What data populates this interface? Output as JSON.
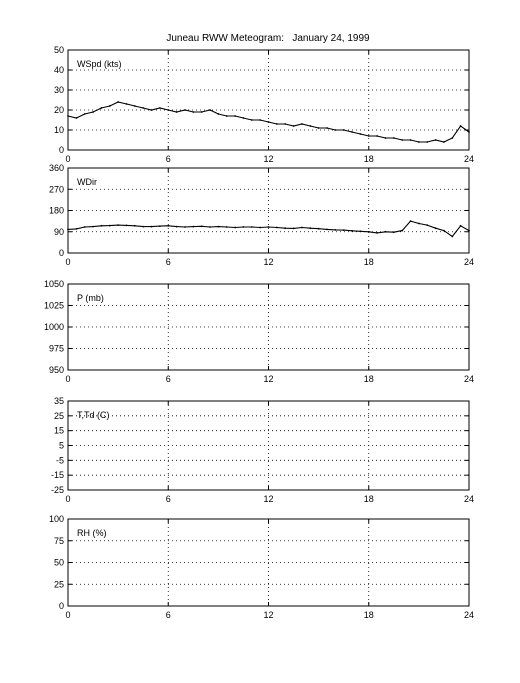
{
  "figure": {
    "title": "Juneau RWW Meteogram:   January 24, 1999"
  },
  "chart_data": [
    {
      "type": "line",
      "panel_label": "WSpd (kts)",
      "xlabel": "",
      "ylabel": "",
      "xlim": [
        0,
        24
      ],
      "ylim": [
        0,
        50
      ],
      "xticks": [
        0,
        6,
        12,
        18,
        24
      ],
      "yticks": [
        0,
        10,
        20,
        30,
        40,
        50
      ],
      "grid": true,
      "series": [
        {
          "x": [
            0,
            0.5,
            1,
            1.5,
            2,
            2.5,
            3,
            3.5,
            4,
            4.5,
            5,
            5.5,
            6,
            6.5,
            7,
            7.5,
            8,
            8.5,
            9,
            9.5,
            10,
            10.5,
            11,
            11.5,
            12,
            12.5,
            13,
            13.5,
            14,
            14.5,
            15,
            15.5,
            16,
            16.5,
            17,
            17.5,
            18,
            18.5,
            19,
            19.5,
            20,
            20.5,
            21,
            21.5,
            22,
            22.5,
            23,
            23.5,
            24
          ],
          "y": [
            17,
            16,
            18,
            19,
            21,
            22,
            24,
            23,
            22,
            21,
            20,
            21,
            20,
            19,
            20,
            19,
            19,
            20,
            18,
            17,
            17,
            16,
            15,
            15,
            14,
            13,
            13,
            12,
            13,
            12,
            11,
            11,
            10,
            10,
            9,
            8,
            7,
            7,
            6,
            6,
            5,
            5,
            4,
            4,
            5,
            4,
            6,
            12,
            9
          ]
        }
      ]
    },
    {
      "type": "line",
      "panel_label": "WDir",
      "xlabel": "",
      "ylabel": "",
      "xlim": [
        0,
        24
      ],
      "ylim": [
        0,
        360
      ],
      "xticks": [
        0,
        6,
        12,
        18,
        24
      ],
      "yticks": [
        0,
        90,
        180,
        270,
        360
      ],
      "grid": true,
      "series": [
        {
          "x": [
            0,
            0.5,
            1,
            1.5,
            2,
            2.5,
            3,
            3.5,
            4,
            4.5,
            5,
            5.5,
            6,
            6.5,
            7,
            7.5,
            8,
            8.5,
            9,
            9.5,
            10,
            10.5,
            11,
            11.5,
            12,
            12.5,
            13,
            13.5,
            14,
            14.5,
            15,
            15.5,
            16,
            16.5,
            17,
            17.5,
            18,
            18.5,
            19,
            19.5,
            20,
            20.5,
            21,
            21.5,
            22,
            22.5,
            23,
            23.5,
            24
          ],
          "y": [
            100,
            102,
            110,
            112,
            115,
            116,
            118,
            117,
            115,
            112,
            112,
            114,
            115,
            112,
            110,
            112,
            113,
            110,
            112,
            110,
            108,
            110,
            110,
            108,
            110,
            108,
            105,
            104,
            108,
            105,
            103,
            100,
            98,
            97,
            94,
            92,
            90,
            85,
            90,
            88,
            95,
            135,
            125,
            118,
            105,
            95,
            70,
            115,
            95
          ]
        }
      ]
    },
    {
      "type": "line",
      "panel_label": "P (mb)",
      "xlabel": "",
      "ylabel": "",
      "xlim": [
        0,
        24
      ],
      "ylim": [
        950,
        1050
      ],
      "xticks": [
        0,
        6,
        12,
        18,
        24
      ],
      "yticks": [
        950,
        975,
        1000,
        1025,
        1050
      ],
      "grid": true,
      "series": []
    },
    {
      "type": "line",
      "panel_label": "T,Td (C)",
      "xlabel": "",
      "ylabel": "",
      "xlim": [
        0,
        24
      ],
      "ylim": [
        -25,
        35
      ],
      "xticks": [
        0,
        6,
        12,
        18,
        24
      ],
      "yticks": [
        -25,
        -15,
        -5,
        5,
        15,
        25,
        35
      ],
      "grid": true,
      "series": []
    },
    {
      "type": "line",
      "panel_label": "RH (%)",
      "xlabel": "",
      "ylabel": "",
      "xlim": [
        0,
        24
      ],
      "ylim": [
        0,
        100
      ],
      "xticks": [
        0,
        6,
        12,
        18,
        24
      ],
      "yticks": [
        0,
        25,
        50,
        75,
        100
      ],
      "grid": true,
      "series": []
    }
  ]
}
